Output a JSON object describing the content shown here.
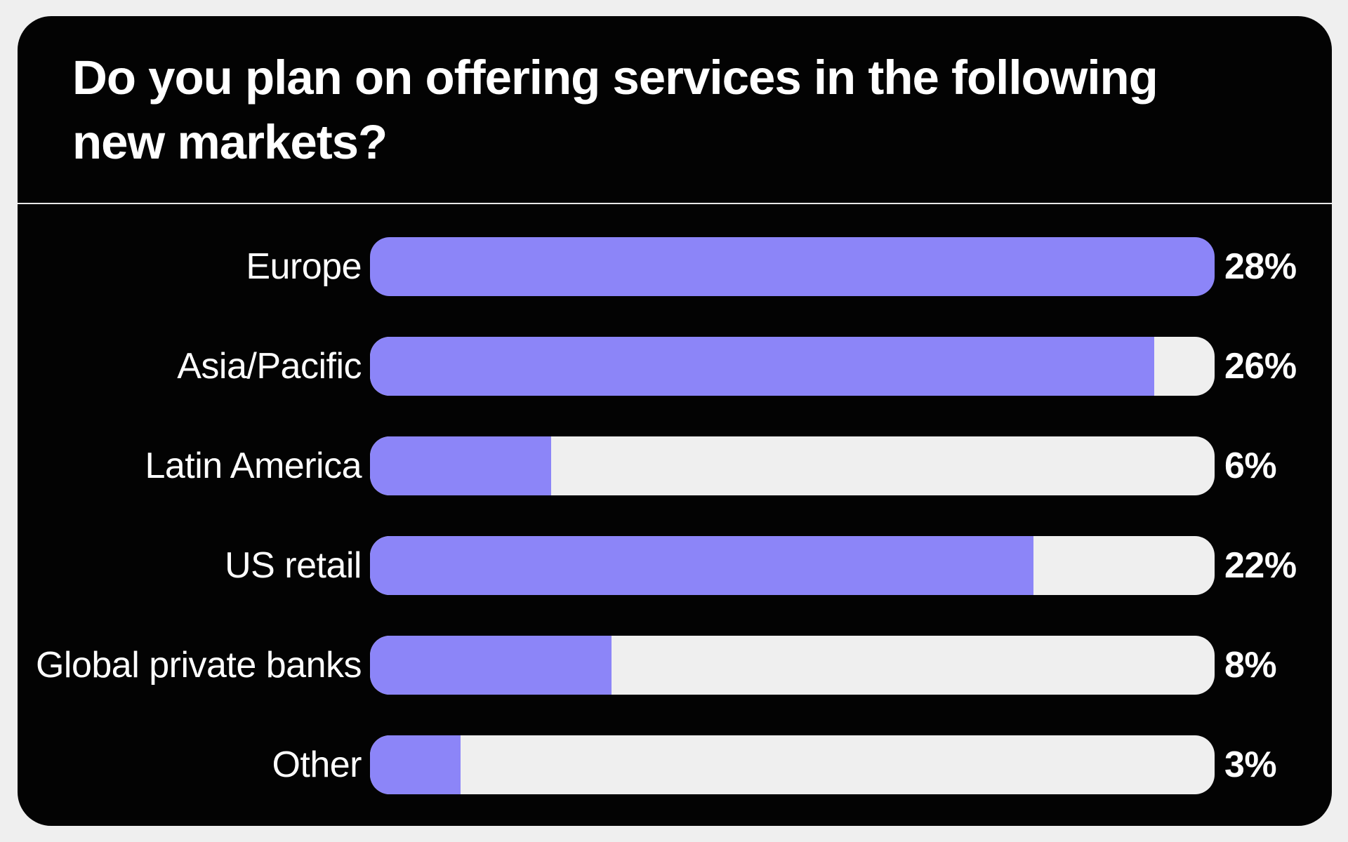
{
  "page": {
    "background_color": "#efefef"
  },
  "card": {
    "background_color": "#030303",
    "text_color": "#ffffff"
  },
  "header": {
    "title": "Do you plan on offering services in the following new markets?",
    "title_lines": [
      "Do you plan on offering services in the following",
      "new markets?"
    ]
  },
  "chart_data": {
    "type": "bar",
    "orientation": "horizontal",
    "title": "Do you plan on offering services in the following new markets?",
    "categories": [
      "Europe",
      "Asia/Pacific",
      "Latin America",
      "US retail",
      "Global private banks",
      "Other"
    ],
    "values": [
      28,
      26,
      6,
      22,
      8,
      3
    ],
    "value_labels": [
      "28%",
      "26%",
      "6%",
      "22%",
      "8%",
      "3%"
    ],
    "unit": "%",
    "axis_max": 28,
    "bar_color": "#8c85f8",
    "track_color": "#efefef",
    "value_label_position": "right-of-bar",
    "category_label_position": "left-of-bar",
    "legend": "none",
    "grid": false
  }
}
